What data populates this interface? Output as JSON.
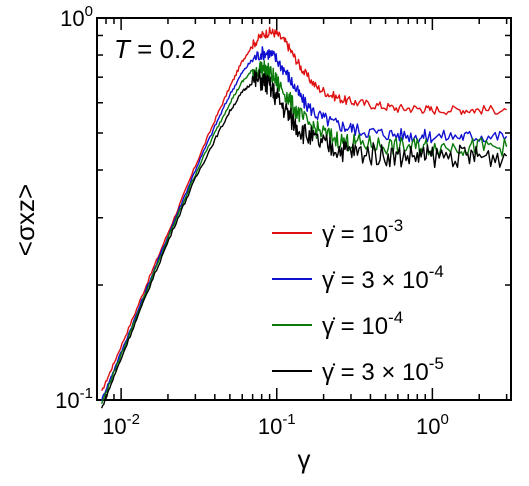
{
  "chart_data": {
    "type": "line",
    "xscale": "log",
    "yscale": "log",
    "xlim": [
      0.007,
      3.2
    ],
    "ylim": [
      0.1,
      1.0
    ],
    "xlabel": "γ",
    "ylabel": "<σxz>",
    "annotation": {
      "var": "T",
      "text": " = 0.2"
    },
    "x_ticks": [
      {
        "base": "10",
        "exp": "-2"
      },
      {
        "base": "10",
        "exp": "-1"
      },
      {
        "base": "10",
        "exp": "0"
      }
    ],
    "y_ticks": [
      {
        "base": "10",
        "exp": "-1"
      },
      {
        "base": "10",
        "exp": "0"
      }
    ],
    "legend_position": "lower-right",
    "series": [
      {
        "name": "γ̇ = 10-3",
        "legend": {
          "prefix": "γ̇ = 10",
          "exp": "-3"
        },
        "color": "#e01010",
        "x": [
          0.0075,
          0.009,
          0.012,
          0.016,
          0.022,
          0.03,
          0.04,
          0.05,
          0.06,
          0.07,
          0.08,
          0.09,
          0.1,
          0.115,
          0.13,
          0.15,
          0.18,
          0.22,
          0.27,
          0.33,
          0.45,
          0.6,
          0.8,
          1.0,
          1.5,
          2.0,
          3.0
        ],
        "y": [
          0.105,
          0.125,
          0.165,
          0.22,
          0.3,
          0.41,
          0.54,
          0.66,
          0.77,
          0.85,
          0.9,
          0.92,
          0.91,
          0.86,
          0.79,
          0.72,
          0.66,
          0.63,
          0.61,
          0.6,
          0.59,
          0.58,
          0.58,
          0.575,
          0.575,
          0.575,
          0.575
        ]
      },
      {
        "name": "γ̇ = 3 × 10-4",
        "legend": {
          "prefix": "γ̇ = 3 × 10",
          "exp": "-4"
        },
        "color": "#1010d0",
        "x": [
          0.0075,
          0.009,
          0.012,
          0.016,
          0.022,
          0.03,
          0.04,
          0.05,
          0.06,
          0.07,
          0.08,
          0.09,
          0.1,
          0.115,
          0.13,
          0.15,
          0.18,
          0.22,
          0.27,
          0.33,
          0.45,
          0.6,
          0.8,
          1.0,
          1.5,
          2.0,
          3.0
        ],
        "y": [
          0.1,
          0.12,
          0.16,
          0.215,
          0.295,
          0.4,
          0.52,
          0.63,
          0.72,
          0.78,
          0.81,
          0.81,
          0.78,
          0.72,
          0.66,
          0.6,
          0.56,
          0.535,
          0.52,
          0.51,
          0.5,
          0.495,
          0.49,
          0.49,
          0.49,
          0.49,
          0.49
        ]
      },
      {
        "name": "γ̇ = 10-4",
        "legend": {
          "prefix": "γ̇ = 10",
          "exp": "-4"
        },
        "color": "#0a7a0a",
        "x": [
          0.0075,
          0.009,
          0.012,
          0.016,
          0.022,
          0.03,
          0.04,
          0.05,
          0.06,
          0.07,
          0.08,
          0.09,
          0.1,
          0.115,
          0.13,
          0.15,
          0.18,
          0.22,
          0.27,
          0.33,
          0.45,
          0.6,
          0.8,
          1.0,
          1.5,
          2.0,
          3.0
        ],
        "y": [
          0.098,
          0.118,
          0.158,
          0.212,
          0.29,
          0.39,
          0.5,
          0.6,
          0.68,
          0.73,
          0.74,
          0.72,
          0.68,
          0.63,
          0.58,
          0.54,
          0.51,
          0.49,
          0.475,
          0.47,
          0.465,
          0.46,
          0.46,
          0.46,
          0.46,
          0.46,
          0.46
        ]
      },
      {
        "name": "γ̇ = 3 × 10-5",
        "legend": {
          "prefix": "γ̇ = 3 × 10",
          "exp": "-5"
        },
        "color": "#000000",
        "x": [
          0.0075,
          0.009,
          0.012,
          0.016,
          0.022,
          0.03,
          0.04,
          0.05,
          0.06,
          0.07,
          0.08,
          0.09,
          0.1,
          0.115,
          0.13,
          0.15,
          0.18,
          0.22,
          0.27,
          0.33,
          0.45,
          0.6,
          0.8,
          1.0,
          1.5,
          2.0,
          3.0
        ],
        "y": [
          0.095,
          0.115,
          0.155,
          0.208,
          0.285,
          0.38,
          0.48,
          0.57,
          0.64,
          0.68,
          0.69,
          0.66,
          0.62,
          0.57,
          0.53,
          0.5,
          0.475,
          0.46,
          0.45,
          0.445,
          0.44,
          0.435,
          0.435,
          0.435,
          0.435,
          0.435,
          0.435
        ]
      }
    ]
  }
}
